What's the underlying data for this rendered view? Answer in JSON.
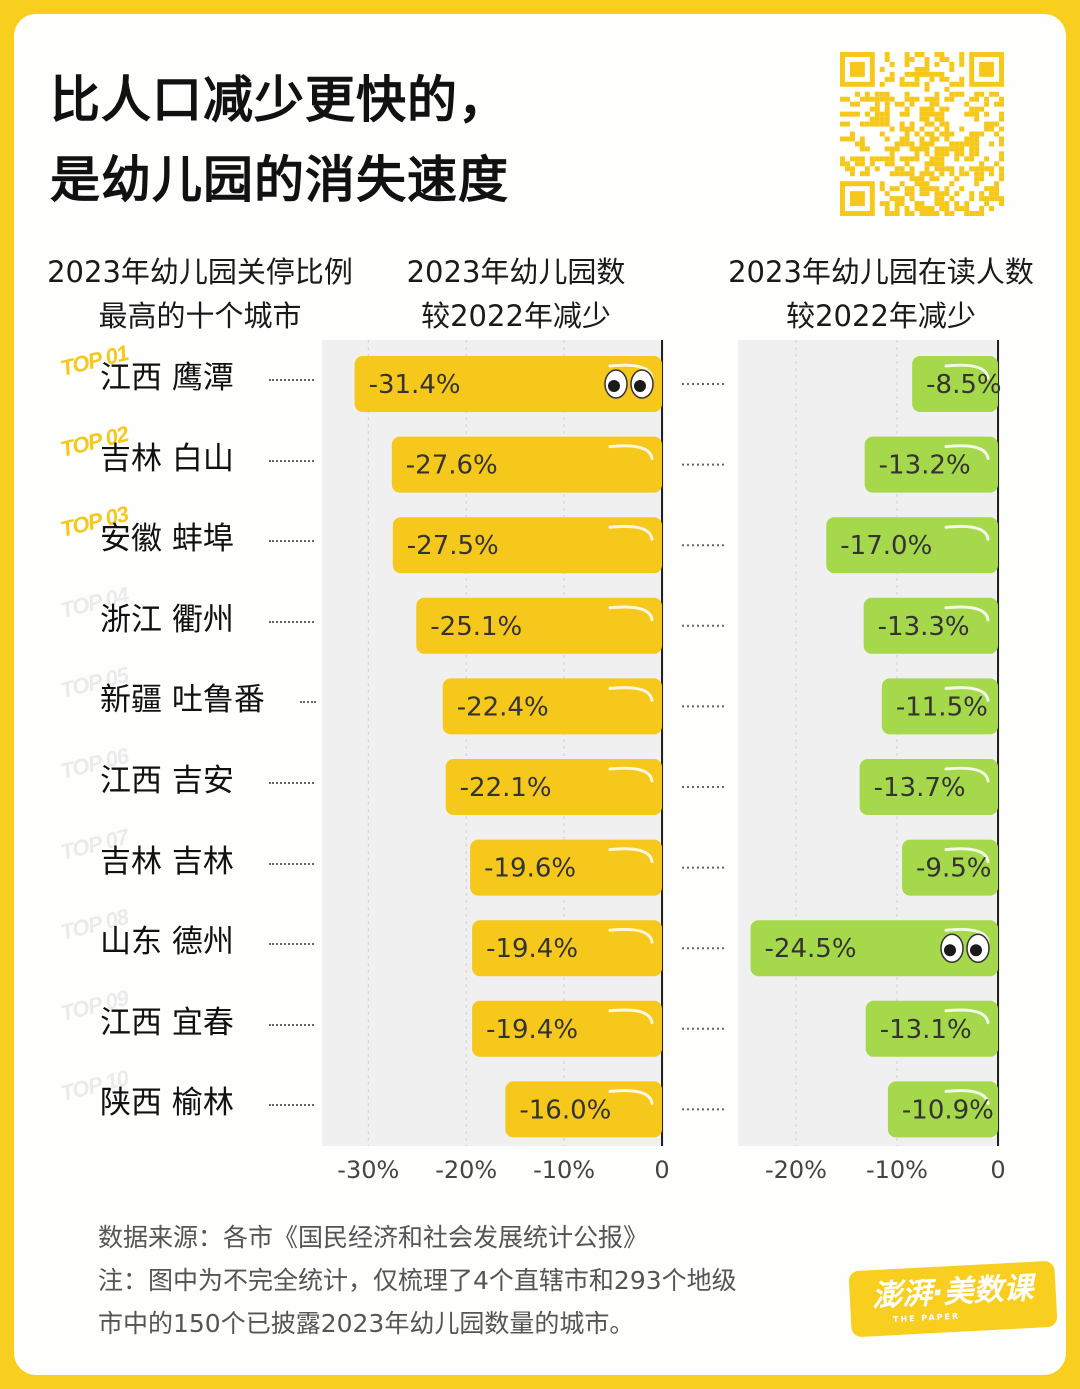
{
  "title": {
    "line1": "比人口减少更快的，",
    "line2": "是幼儿园的消失速度"
  },
  "columns": {
    "city": [
      "2023年幼儿园关停比例",
      "最高的十个城市"
    ],
    "kindergarten": [
      "2023年幼儿园数",
      "较2022年减少"
    ],
    "enrollment": [
      "2023年幼儿园在读人数",
      "较2022年减少"
    ]
  },
  "chart_data": [
    {
      "type": "bar",
      "orientation": "horizontal",
      "title": "2023年幼儿园数较2022年减少",
      "categories": [
        "江西 鹰潭",
        "吉林 白山",
        "安徽 蚌埠",
        "浙江 衢州",
        "新疆 吐鲁番",
        "江西 吉安",
        "吉林 吉林",
        "山东 德州",
        "江西 宜春",
        "陕西 榆林"
      ],
      "values": [
        -31.4,
        -27.6,
        -27.5,
        -25.1,
        -22.4,
        -22.1,
        -19.6,
        -19.4,
        -19.4,
        -16.0
      ],
      "labels": [
        "-31.4%",
        "-27.6%",
        "-27.5%",
        "-25.1%",
        "-22.4%",
        "-22.1%",
        "-19.6%",
        "-19.4%",
        "-19.4%",
        "-16.0%"
      ],
      "xlim": [
        -35,
        0
      ],
      "ticks": [
        -30,
        -20,
        -10,
        0
      ],
      "tick_labels": [
        "-30%",
        "-20%",
        "-10%",
        "0"
      ],
      "highlight_index": 0,
      "color": "#f6c81b"
    },
    {
      "type": "bar",
      "orientation": "horizontal",
      "title": "2023年幼儿园在读人数较2022年减少",
      "categories": [
        "江西 鹰潭",
        "吉林 白山",
        "安徽 蚌埠",
        "浙江 衢州",
        "新疆 吐鲁番",
        "江西 吉安",
        "吉林 吉林",
        "山东 德州",
        "江西 宜春",
        "陕西 榆林"
      ],
      "values": [
        -8.5,
        -13.2,
        -17.0,
        -13.3,
        -11.5,
        -13.7,
        -9.5,
        -24.5,
        -13.1,
        -10.9
      ],
      "labels": [
        "-8.5%",
        "-13.2%",
        "-17.0%",
        "-13.3%",
        "-11.5%",
        "-13.7%",
        "-9.5%",
        "-24.5%",
        "-13.1%",
        "-10.9%"
      ],
      "xlim": [
        -26,
        0
      ],
      "ticks": [
        -20,
        -10,
        0
      ],
      "tick_labels": [
        "-20%",
        "-10%",
        "0"
      ],
      "highlight_index": 7,
      "color": "#a5d84a"
    }
  ],
  "ranks": [
    "TOP 01",
    "TOP 02",
    "TOP 03",
    "TOP 04",
    "TOP 05",
    "TOP 06",
    "TOP 07",
    "TOP 08",
    "TOP 09",
    "TOP 10"
  ],
  "source": {
    "line1": "数据来源：各市《国民经济和社会发展统计公报》",
    "line2": "注：图中为不完全统计，仅梳理了4个直辖市和293个地级",
    "line3": "市中的150个已披露2023年幼儿园数量的城市。"
  },
  "brand": {
    "name": "澎湃·美数课",
    "sub": "THE PAPER"
  },
  "colors": {
    "background": "#f8cf1f",
    "kindergarten_bar": "#f6c81b",
    "enrollment_bar": "#a5d84a"
  }
}
